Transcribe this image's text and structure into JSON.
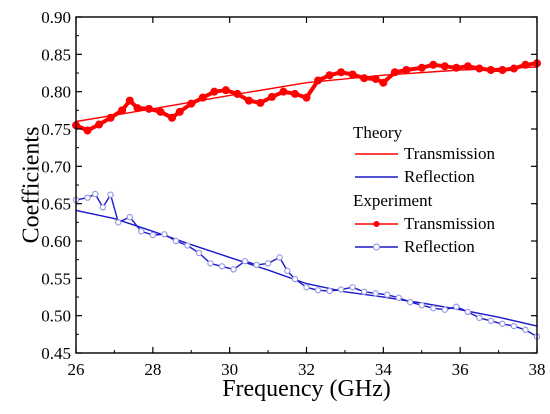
{
  "chart_data": {
    "type": "line",
    "xlabel": "Frequency (GHz)",
    "ylabel": "Coefficients",
    "xlim": [
      26,
      38
    ],
    "ylim": [
      0.45,
      0.9
    ],
    "xticks": [
      "26",
      "28",
      "30",
      "32",
      "34",
      "36",
      "38"
    ],
    "yticks": [
      "0.45",
      "0.50",
      "0.55",
      "0.60",
      "0.65",
      "0.70",
      "0.75",
      "0.80",
      "0.85",
      "0.90"
    ],
    "legend": {
      "placement": "right-center",
      "groups": [
        {
          "title": "Theory",
          "entries": [
            "Transmission",
            "Reflection"
          ]
        },
        {
          "title": "Experiment",
          "entries": [
            "Transmission",
            "Reflection"
          ]
        }
      ]
    },
    "colors": {
      "transmission": "#ff0000",
      "reflection": "#1a1acc",
      "reflection_experiment_marker": "#9a9ae6"
    },
    "series": [
      {
        "group": "Theory",
        "name": "Transmission",
        "style": "line",
        "color": "#ff0000",
        "x": [
          26,
          28,
          30,
          32,
          34,
          36,
          38
        ],
        "y": [
          0.76,
          0.777,
          0.795,
          0.812,
          0.822,
          0.829,
          0.833
        ]
      },
      {
        "group": "Theory",
        "name": "Reflection",
        "style": "line",
        "color": "#1a1acc",
        "x": [
          26,
          27,
          28,
          29,
          30,
          31,
          32,
          33,
          34,
          35,
          36,
          37,
          38
        ],
        "y": [
          0.641,
          0.63,
          0.613,
          0.595,
          0.578,
          0.561,
          0.543,
          0.532,
          0.525,
          0.517,
          0.508,
          0.498,
          0.486
        ]
      },
      {
        "group": "Experiment",
        "name": "Transmission",
        "style": "line-markers",
        "color": "#ff0000",
        "x": [
          26.0,
          26.3,
          26.6,
          26.9,
          27.2,
          27.4,
          27.6,
          27.9,
          28.2,
          28.5,
          28.7,
          29.0,
          29.3,
          29.6,
          29.9,
          30.2,
          30.5,
          30.8,
          31.1,
          31.4,
          31.7,
          32.0,
          32.3,
          32.6,
          32.9,
          33.2,
          33.5,
          33.8,
          34.0,
          34.3,
          34.6,
          35.0,
          35.3,
          35.6,
          35.9,
          36.2,
          36.5,
          36.8,
          37.1,
          37.4,
          37.7,
          38.0
        ],
        "y": [
          0.755,
          0.748,
          0.756,
          0.765,
          0.775,
          0.788,
          0.778,
          0.777,
          0.773,
          0.765,
          0.773,
          0.784,
          0.792,
          0.8,
          0.802,
          0.797,
          0.788,
          0.785,
          0.793,
          0.8,
          0.797,
          0.792,
          0.815,
          0.822,
          0.826,
          0.823,
          0.818,
          0.817,
          0.812,
          0.826,
          0.829,
          0.832,
          0.836,
          0.834,
          0.832,
          0.834,
          0.831,
          0.829,
          0.829,
          0.831,
          0.836,
          0.838
        ]
      },
      {
        "group": "Experiment",
        "name": "Reflection",
        "style": "line-markers",
        "color": "#1a1acc",
        "x": [
          26.0,
          26.3,
          26.5,
          26.7,
          26.9,
          27.1,
          27.4,
          27.7,
          28.0,
          28.3,
          28.6,
          28.9,
          29.2,
          29.5,
          29.8,
          30.1,
          30.4,
          30.7,
          31.0,
          31.3,
          31.5,
          31.7,
          32.0,
          32.3,
          32.6,
          32.9,
          33.2,
          33.5,
          33.8,
          34.1,
          34.4,
          34.7,
          35.0,
          35.3,
          35.6,
          35.9,
          36.2,
          36.5,
          36.8,
          37.1,
          37.4,
          37.7,
          38.0
        ],
        "y": [
          0.655,
          0.658,
          0.663,
          0.645,
          0.662,
          0.625,
          0.632,
          0.613,
          0.608,
          0.609,
          0.6,
          0.594,
          0.584,
          0.57,
          0.566,
          0.562,
          0.573,
          0.568,
          0.57,
          0.578,
          0.56,
          0.549,
          0.538,
          0.534,
          0.533,
          0.535,
          0.538,
          0.532,
          0.53,
          0.528,
          0.524,
          0.518,
          0.514,
          0.51,
          0.508,
          0.512,
          0.505,
          0.497,
          0.493,
          0.489,
          0.486,
          0.481,
          0.472
        ]
      }
    ]
  }
}
